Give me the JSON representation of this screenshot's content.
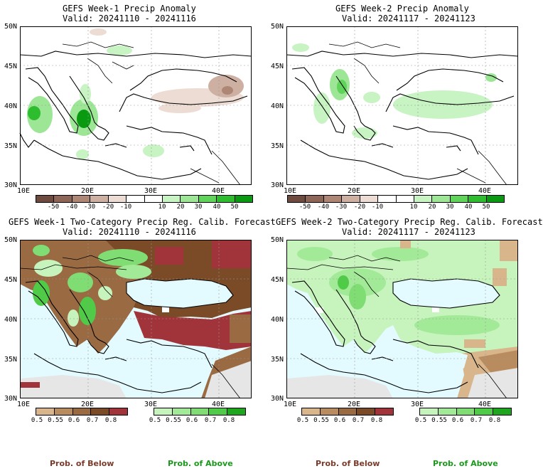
{
  "panels": {
    "tl": {
      "title1": "GEFS Week-1 Precip Anomaly",
      "title2": "Valid: 20241110 - 20241116"
    },
    "tr": {
      "title1": "GEFS Week-2 Precip Anomaly",
      "title2": "Valid: 20241117 - 20241123"
    },
    "bl": {
      "title1": "GEFS Week-1 Two-Category Precip Reg. Calib. Forecast",
      "title2": "Valid: 20241110 - 20241116"
    },
    "br": {
      "title1": "GEFS Week-2 Two-Category Precip Reg. Calib. Forecast",
      "title2": "Valid: 20241117 - 20241123"
    }
  },
  "axes": {
    "lat_labels": [
      "50N",
      "45N",
      "40N",
      "35N",
      "30N"
    ],
    "lon_labels": [
      "10E",
      "20E",
      "30E",
      "40E"
    ]
  },
  "anomaly_colorbar": {
    "colors": [
      "#6f4a3e",
      "#8d6658",
      "#ad8676",
      "#ceb0a2",
      "#ecdcd3",
      "#ffffff",
      "#ffffff",
      "#c8f3c3",
      "#9ce696",
      "#5fd35a",
      "#2ebd2e",
      "#0a9a12"
    ],
    "labels": [
      "-50",
      "-40",
      "-30",
      "-20",
      "-10",
      "10",
      "20",
      "30",
      "40",
      "50"
    ]
  },
  "prob_below_colorbar": {
    "colors": [
      "#d9b58b",
      "#b98c5f",
      "#9a6a42",
      "#7b4a27",
      "#a0343a"
    ],
    "labels": [
      "0.5",
      "0.55",
      "0.6",
      "0.7",
      "0.8"
    ]
  },
  "prob_above_colorbar": {
    "colors": [
      "#c7f3bd",
      "#a3ea98",
      "#7fdd74",
      "#4fcb48",
      "#1ea61e"
    ],
    "labels": [
      "0.5",
      "0.55",
      "0.6",
      "0.7",
      "0.8"
    ]
  },
  "legend": {
    "below": "Prob. of Below",
    "above": "Prob. of Above"
  },
  "colors": {
    "sea": "#e3fbff",
    "land_dry_high": "#7b4a27",
    "land_wet": "#7fdd74",
    "no_data": "#e6e6e6",
    "below_text": "#7b3b2a",
    "above_text": "#1a9a1a"
  }
}
